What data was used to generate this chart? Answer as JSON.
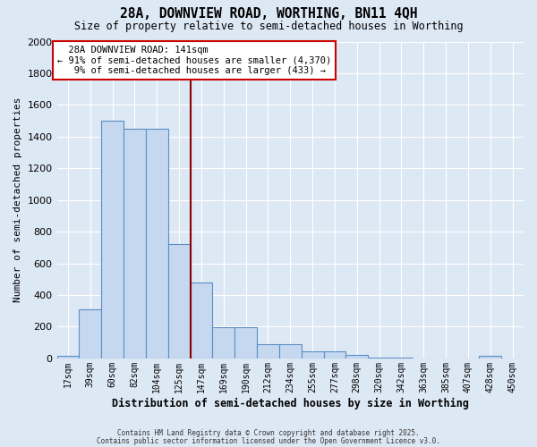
{
  "title": "28A, DOWNVIEW ROAD, WORTHING, BN11 4QH",
  "subtitle": "Size of property relative to semi-detached houses in Worthing",
  "xlabel": "Distribution of semi-detached houses by size in Worthing",
  "ylabel": "Number of semi-detached properties",
  "categories": [
    "17sqm",
    "39sqm",
    "60sqm",
    "82sqm",
    "104sqm",
    "125sqm",
    "147sqm",
    "169sqm",
    "190sqm",
    "212sqm",
    "234sqm",
    "255sqm",
    "277sqm",
    "298sqm",
    "320sqm",
    "342sqm",
    "363sqm",
    "385sqm",
    "407sqm",
    "428sqm",
    "450sqm"
  ],
  "values": [
    15,
    310,
    1500,
    1450,
    1450,
    720,
    480,
    195,
    195,
    90,
    90,
    45,
    45,
    20,
    5,
    5,
    0,
    0,
    0,
    15,
    0
  ],
  "bar_color": "#c5d8f0",
  "bar_edge_color": "#5b8ec4",
  "background_color": "#dde8f5",
  "grid_color": "#ffffff",
  "vline_color": "#8b0000",
  "property_label": "28A DOWNVIEW ROAD: 141sqm",
  "smaller_pct": "91% of semi-detached houses are smaller (4,370)",
  "larger_pct": "9% of semi-detached houses are larger (433)",
  "annotation_box_color": "#cc0000",
  "ylim": [
    0,
    2000
  ],
  "yticks": [
    0,
    200,
    400,
    600,
    800,
    1000,
    1200,
    1400,
    1600,
    1800,
    2000
  ],
  "vline_index": 6,
  "footer1": "Contains HM Land Registry data © Crown copyright and database right 2025.",
  "footer2": "Contains public sector information licensed under the Open Government Licence v3.0."
}
